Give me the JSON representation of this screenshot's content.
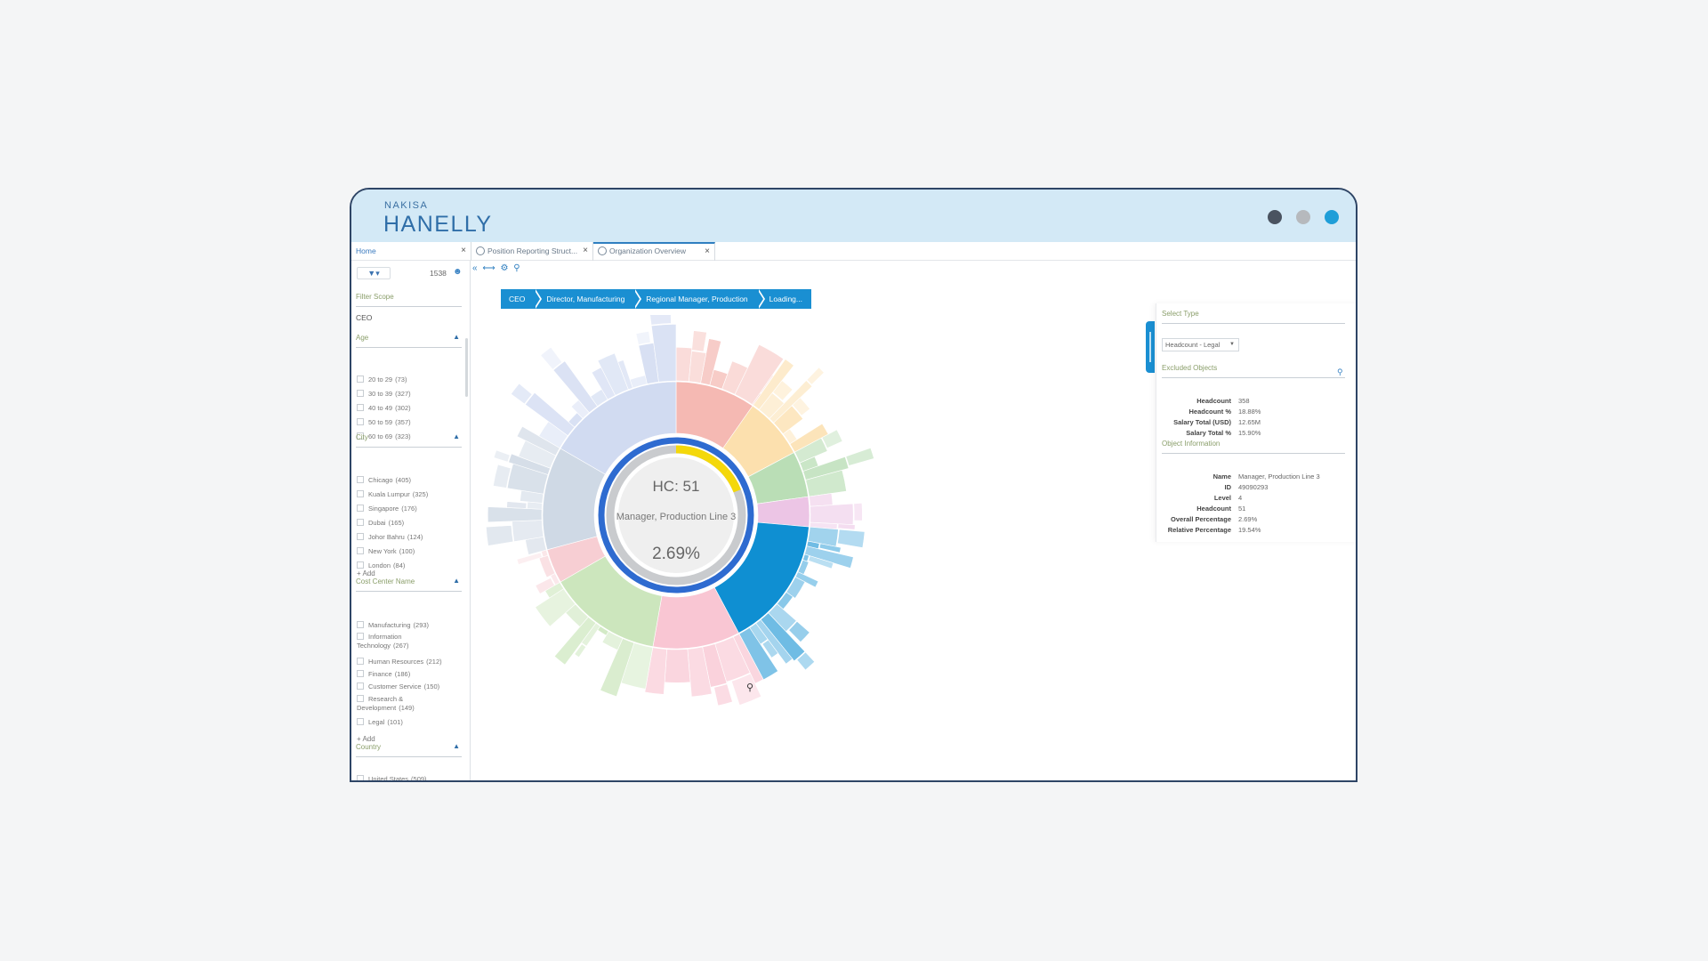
{
  "brand": {
    "top": "NAKISA",
    "main": "HANELLY"
  },
  "colors": {
    "accent": "#1a8fd2",
    "dark_dot": "#4a5360",
    "grey_dot": "#b6b9bd",
    "blue_dot": "#1f9ed8",
    "header_label": "#8a9e6a"
  },
  "tabs": [
    {
      "label": "Home",
      "close": "×"
    },
    {
      "label": "Position Reporting Struct...",
      "close": "×"
    },
    {
      "label": "Organization Overview",
      "close": "×"
    }
  ],
  "sidebar": {
    "filter_label": "▼▾",
    "count": "1538",
    "filter_scope": {
      "title": "Filter Scope",
      "value": "CEO"
    },
    "age": {
      "title": "Age",
      "options": [
        {
          "label": "20 to 29",
          "count": "(73)"
        },
        {
          "label": "30 to 39",
          "count": "(327)"
        },
        {
          "label": "40 to 49",
          "count": "(302)"
        },
        {
          "label": "50 to 59",
          "count": "(357)"
        },
        {
          "label": "60 to 69",
          "count": "(323)"
        }
      ]
    },
    "city": {
      "title": "City",
      "options": [
        {
          "label": "Chicago",
          "count": "(405)"
        },
        {
          "label": "Kuala Lumpur",
          "count": "(325)"
        },
        {
          "label": "Singapore",
          "count": "(176)"
        },
        {
          "label": "Dubai",
          "count": "(165)"
        },
        {
          "label": "Johor Bahru",
          "count": "(124)"
        },
        {
          "label": "New York",
          "count": "(100)"
        },
        {
          "label": "London",
          "count": "(84)"
        }
      ],
      "add": "Add"
    },
    "cost_center": {
      "title": "Cost Center Name",
      "options": [
        {
          "label": "Manufacturing",
          "count": "(293)"
        },
        {
          "label": "Information Technology",
          "count": "(267)"
        },
        {
          "label": "Human Resources",
          "count": "(212)"
        },
        {
          "label": "Finance",
          "count": "(186)"
        },
        {
          "label": "Customer Service",
          "count": "(150)"
        },
        {
          "label": "Research & Development",
          "count": "(149)"
        },
        {
          "label": "Legal",
          "count": "(101)"
        }
      ],
      "add": "Add"
    },
    "country": {
      "title": "Country",
      "options": [
        {
          "label": "United States",
          "count": "(509)"
        }
      ]
    }
  },
  "breadcrumb": [
    "CEO",
    "Director, Manufacturing",
    "Regional Manager, Production",
    "Loading..."
  ],
  "center": {
    "hc": "HC: 51",
    "name": "Manager, Production Line 3",
    "percent": "2.69%",
    "progress_fraction": 0.19
  },
  "panel": {
    "select_type_title": "Select Type",
    "select_value": "Headcount - Legal",
    "excluded_title": "Excluded Objects",
    "excluded": [
      {
        "k": "Headcount",
        "v": "358"
      },
      {
        "k": "Headcount %",
        "v": "18.88%"
      },
      {
        "k": "Salary Total (USD)",
        "v": "12.65M"
      },
      {
        "k": "Salary Total %",
        "v": "15.90%"
      }
    ],
    "object_title": "Object Information",
    "object": [
      {
        "k": "Name",
        "v": "Manager, Production Line 3"
      },
      {
        "k": "ID",
        "v": "49090293"
      },
      {
        "k": "Level",
        "v": "4"
      },
      {
        "k": "Headcount",
        "v": "51"
      },
      {
        "k": "Overall Percentage",
        "v": "2.69%"
      },
      {
        "k": "Relative Percentage",
        "v": "19.54%"
      }
    ]
  }
}
